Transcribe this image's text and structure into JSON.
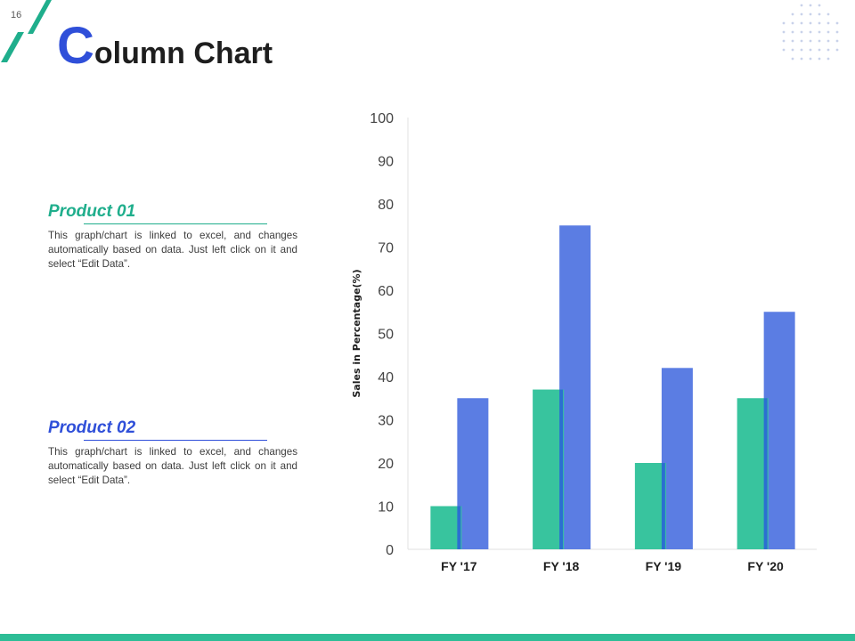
{
  "slide": {
    "page_number": "16",
    "title_initial": "C",
    "title_rest": "olumn Chart"
  },
  "products": [
    {
      "heading": "Product 01",
      "description": "This graph/chart is linked to excel, and changes automatically based on data. Just left click on it and select “Edit Data”."
    },
    {
      "heading": "Product 02",
      "description": "This graph/chart is linked to excel, and changes automatically based on data. Just left click on it and select “Edit Data”."
    }
  ],
  "colors": {
    "accent_blue": "#2f4fd9",
    "accent_green": "#2dbd96",
    "series_1": "#38c49e",
    "series_2": "#5b7de3",
    "series_1_edge": "#2b6fd1",
    "footer": "#2dbd96"
  },
  "chart_data": {
    "type": "bar",
    "title": "",
    "xlabel": "",
    "ylabel": "Sales in Percentage(%)",
    "categories": [
      "FY '17",
      "FY '18",
      "FY '19",
      "FY '20"
    ],
    "series": [
      {
        "values": [
          10,
          37,
          20,
          35
        ]
      },
      {
        "values": [
          35,
          75,
          42,
          55
        ]
      }
    ],
    "ylim": [
      0,
      100
    ],
    "yticks": [
      0,
      10,
      20,
      30,
      40,
      50,
      60,
      70,
      80,
      90,
      100
    ],
    "grid": false,
    "legend": "none"
  }
}
